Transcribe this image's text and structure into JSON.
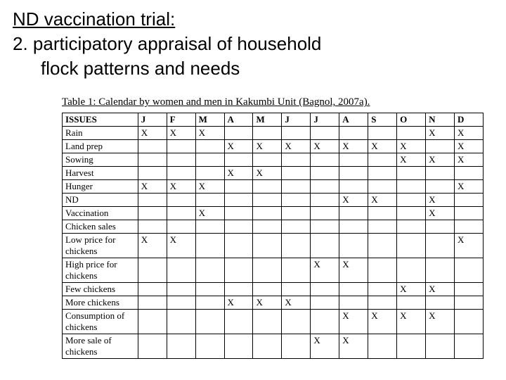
{
  "heading": {
    "line1": "ND vaccination trial:",
    "line2a": "2.  participatory appraisal of household",
    "line2b": "flock patterns and needs"
  },
  "caption": "Table 1: Calendar by women and men in Kakumbi Unit (Bagnol, 2007a).",
  "table": {
    "header_issues": "ISSUES",
    "months": [
      "J",
      "F",
      "M",
      "A",
      "M",
      "J",
      "J",
      "A",
      "S",
      "O",
      "N",
      "D"
    ],
    "rows": [
      {
        "label": "Rain",
        "cells": [
          "X",
          "X",
          "X",
          "",
          "",
          "",
          "",
          "",
          "",
          "",
          "X",
          "X"
        ],
        "tall": false
      },
      {
        "label": "Land prep",
        "cells": [
          "",
          "",
          "",
          "X",
          "X",
          "X",
          "X",
          "X",
          "X",
          "X",
          "",
          "X"
        ],
        "tall": false
      },
      {
        "label": "Sowing",
        "cells": [
          "",
          "",
          "",
          "",
          "",
          "",
          "",
          "",
          "",
          "X",
          "X",
          "X"
        ],
        "tall": false
      },
      {
        "label": "Harvest",
        "cells": [
          "",
          "",
          "",
          "X",
          "X",
          "",
          "",
          "",
          "",
          "",
          "",
          ""
        ],
        "tall": false
      },
      {
        "label": "Hunger",
        "cells": [
          "X",
          "X",
          "X",
          "",
          "",
          "",
          "",
          "",
          "",
          "",
          "",
          "X"
        ],
        "tall": false
      },
      {
        "label": "ND",
        "cells": [
          "",
          "",
          "",
          "",
          "",
          "",
          "",
          "X",
          "X",
          "",
          "X",
          ""
        ],
        "tall": false
      },
      {
        "label": "Vaccination",
        "cells": [
          "",
          "",
          "X",
          "",
          "",
          "",
          "",
          "",
          "",
          "",
          "X",
          ""
        ],
        "tall": false
      },
      {
        "label": "Chicken sales",
        "cells": [
          "",
          "",
          "",
          "",
          "",
          "",
          "",
          "",
          "",
          "",
          "",
          ""
        ],
        "tall": false
      },
      {
        "label": "Low price for chickens",
        "cells": [
          "X",
          "X",
          "",
          "",
          "",
          "",
          "",
          "",
          "",
          "",
          "",
          "X"
        ],
        "tall": true
      },
      {
        "label": "High price for chickens",
        "cells": [
          "",
          "",
          "",
          "",
          "",
          "",
          "X",
          "X",
          "",
          "",
          "",
          ""
        ],
        "tall": true
      },
      {
        "label": "Few chickens",
        "cells": [
          "",
          "",
          "",
          "",
          "",
          "",
          "",
          "",
          "",
          "X",
          "X",
          ""
        ],
        "tall": false
      },
      {
        "label": "More chickens",
        "cells": [
          "",
          "",
          "",
          "X",
          "X",
          "X",
          "",
          "",
          "",
          "",
          "",
          ""
        ],
        "tall": false
      },
      {
        "label": "Consumption of chickens",
        "cells": [
          "",
          "",
          "",
          "",
          "",
          "",
          "",
          "X",
          "X",
          "X",
          "X",
          ""
        ],
        "tall": true
      },
      {
        "label": "More sale of chickens",
        "cells": [
          "",
          "",
          "",
          "",
          "",
          "",
          "X",
          "X",
          "",
          "",
          "",
          ""
        ],
        "tall": true
      }
    ]
  },
  "colors": {
    "background": "#ffffff",
    "text": "#000000",
    "border": "#000000"
  }
}
